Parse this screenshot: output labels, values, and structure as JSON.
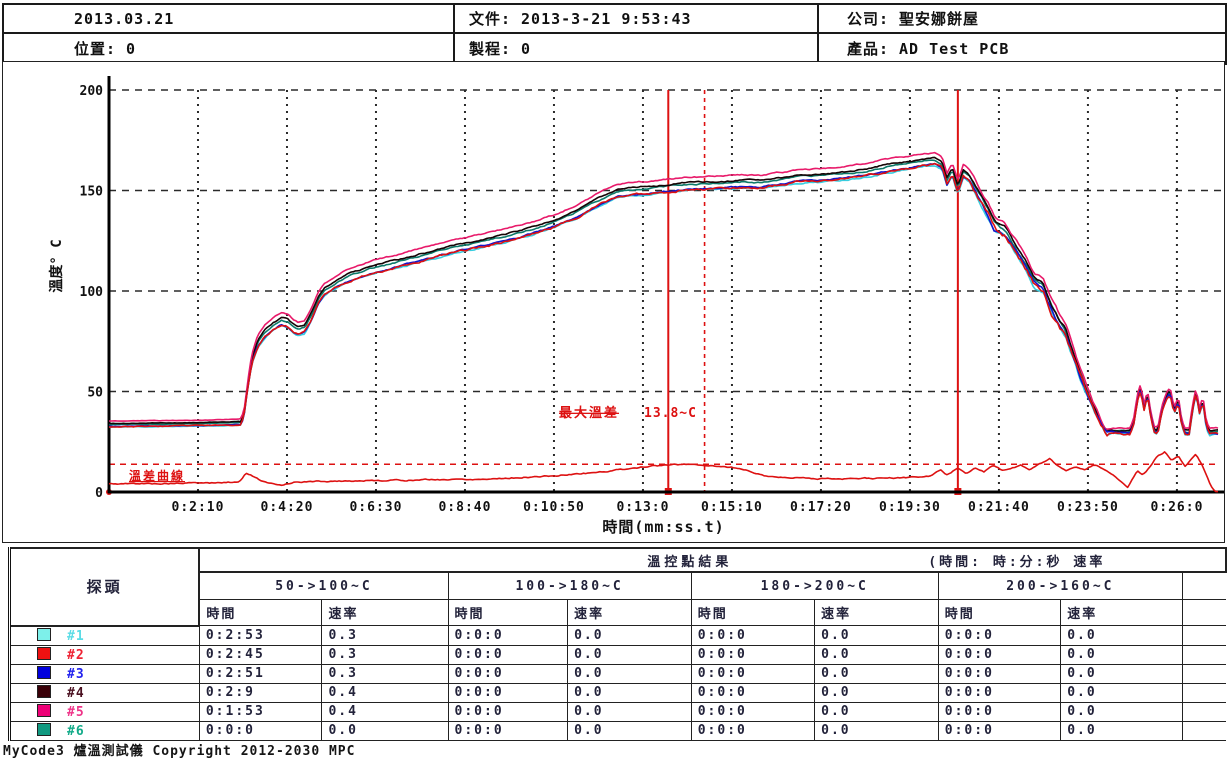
{
  "header": {
    "date": "2013.03.21",
    "file_label": "文件:",
    "file_value": "2013-3-21 9:53:43",
    "company_label": "公司:",
    "company_value": "聖安娜餅屋",
    "position_label": "位置:",
    "position_value": "0",
    "process_label": "製程:",
    "process_value": "0",
    "product_label": "產品:",
    "product_value": "AD Test PCB"
  },
  "chart_data": {
    "type": "line",
    "title": "",
    "xlabel": "時間(mm:ss.t)",
    "ylabel": "溫度° C",
    "ylim": [
      0,
      200
    ],
    "yticks": [
      0,
      50,
      100,
      150,
      200
    ],
    "xlim_seconds": [
      0,
      1620
    ],
    "xtick_seconds": [
      130,
      260,
      390,
      520,
      650,
      780,
      910,
      1040,
      1170,
      1300,
      1430,
      1560
    ],
    "xtick_labels": [
      "0:2:10",
      "0:4:20",
      "0:6:30",
      "0:8:40",
      "0:10:50",
      "0:13:0",
      "0:15:10",
      "0:17:20",
      "0:19:30",
      "0:21:40",
      "0:23:50",
      "0:26:0"
    ],
    "grid": true,
    "legend_position": "table-below",
    "annotations": {
      "max_diff_label": "最大溫差",
      "max_diff_value": "13.8~C",
      "max_diff_line_c": 13.8,
      "diff_curve_label": "溫差曲線"
    },
    "markers": {
      "solid_vlines_seconds": [
        817,
        1240
      ],
      "dashed_vline_seconds": 870,
      "marker_color": "#dd1111"
    },
    "base_profile": [
      [
        0,
        33.5
      ],
      [
        100,
        33.8
      ],
      [
        170,
        34.2
      ],
      [
        192,
        34.5
      ],
      [
        197,
        38
      ],
      [
        203,
        54
      ],
      [
        209,
        66
      ],
      [
        217,
        74
      ],
      [
        227,
        79
      ],
      [
        240,
        83
      ],
      [
        252,
        85.5
      ],
      [
        261,
        84.5
      ],
      [
        269,
        82
      ],
      [
        277,
        80.5
      ],
      [
        286,
        81.5
      ],
      [
        296,
        88
      ],
      [
        306,
        96
      ],
      [
        314,
        100
      ],
      [
        332,
        104
      ],
      [
        356,
        108
      ],
      [
        382,
        111
      ],
      [
        420,
        114
      ],
      [
        460,
        117.5
      ],
      [
        500,
        121
      ],
      [
        540,
        124
      ],
      [
        580,
        127
      ],
      [
        618,
        130.5
      ],
      [
        650,
        134
      ],
      [
        678,
        138
      ],
      [
        700,
        142
      ],
      [
        722,
        146
      ],
      [
        742,
        149
      ],
      [
        762,
        150
      ],
      [
        782,
        150.5
      ],
      [
        810,
        151.5
      ],
      [
        840,
        152.5
      ],
      [
        870,
        153
      ],
      [
        900,
        153.5
      ],
      [
        925,
        154
      ],
      [
        950,
        153.5
      ],
      [
        980,
        155
      ],
      [
        1010,
        156.5
      ],
      [
        1045,
        157
      ],
      [
        1075,
        158
      ],
      [
        1105,
        159.5
      ],
      [
        1135,
        161.5
      ],
      [
        1165,
        163
      ],
      [
        1190,
        164.5
      ],
      [
        1207,
        165
      ],
      [
        1217,
        163
      ],
      [
        1224,
        155
      ],
      [
        1232,
        160
      ],
      [
        1240,
        151
      ],
      [
        1248,
        159
      ],
      [
        1256,
        157
      ],
      [
        1270,
        148
      ],
      [
        1284,
        140
      ],
      [
        1294,
        133
      ],
      [
        1309,
        130
      ],
      [
        1324,
        122
      ],
      [
        1339,
        114
      ],
      [
        1351,
        106
      ],
      [
        1364,
        103
      ],
      [
        1377,
        92
      ],
      [
        1389,
        84
      ],
      [
        1397,
        80
      ],
      [
        1407,
        70
      ],
      [
        1419,
        58
      ],
      [
        1431,
        48
      ],
      [
        1441,
        40
      ],
      [
        1451,
        33
      ],
      [
        1457,
        30
      ],
      [
        1492,
        30
      ],
      [
        1497,
        35
      ],
      [
        1502,
        46
      ],
      [
        1507,
        52
      ],
      [
        1512,
        42
      ],
      [
        1517,
        49
      ],
      [
        1522,
        38
      ],
      [
        1527,
        31
      ],
      [
        1532,
        30
      ],
      [
        1538,
        41
      ],
      [
        1544,
        47
      ],
      [
        1550,
        50
      ],
      [
        1556,
        40
      ],
      [
        1562,
        46
      ],
      [
        1567,
        34
      ],
      [
        1572,
        30
      ],
      [
        1578,
        30
      ],
      [
        1583,
        42
      ],
      [
        1588,
        50
      ],
      [
        1593,
        40
      ],
      [
        1598,
        46
      ],
      [
        1603,
        33
      ],
      [
        1608,
        30
      ],
      [
        1620,
        30
      ]
    ],
    "series": [
      {
        "name": "#1",
        "color": "#38cddf",
        "offset": -2.6,
        "seed": 11,
        "amp": 0.55
      },
      {
        "name": "#2",
        "color": "#dd1111",
        "offset": -2.2,
        "seed": 23,
        "amp": 0.8
      },
      {
        "name": "#3",
        "color": "#1414cc",
        "offset": -2.0,
        "seed": 37,
        "amp": 0.55
      },
      {
        "name": "#4",
        "color": "#150505",
        "offset": 1.3,
        "seed": 49,
        "amp": 0.5
      },
      {
        "name": "#5",
        "color": "#e81a6a",
        "offset": 3.9,
        "seed": 61,
        "amp": 0.5
      },
      {
        "name": "#6",
        "color": "#0d7a6a",
        "offset": 0.3,
        "seed": 77,
        "amp": 0.5
      }
    ],
    "diff_series": {
      "name": "溫差曲線",
      "color": "#dd1111",
      "points": [
        [
          0,
          4
        ],
        [
          150,
          4.5
        ],
        [
          190,
          5
        ],
        [
          200,
          9.5
        ],
        [
          210,
          8
        ],
        [
          222,
          5.5
        ],
        [
          234,
          4
        ],
        [
          252,
          3.5
        ],
        [
          270,
          5
        ],
        [
          340,
          5.5
        ],
        [
          450,
          6
        ],
        [
          550,
          6.5
        ],
        [
          650,
          8
        ],
        [
          720,
          10
        ],
        [
          780,
          12.5
        ],
        [
          817,
          13.4
        ],
        [
          850,
          13.8
        ],
        [
          880,
          13.2
        ],
        [
          910,
          12.3
        ],
        [
          940,
          10
        ],
        [
          960,
          8
        ],
        [
          990,
          7.2
        ],
        [
          1030,
          6.8
        ],
        [
          1080,
          6.5
        ],
        [
          1130,
          6.8
        ],
        [
          1170,
          7.2
        ],
        [
          1200,
          8
        ],
        [
          1215,
          11
        ],
        [
          1225,
          8.5
        ],
        [
          1240,
          12
        ],
        [
          1252,
          9.5
        ],
        [
          1265,
          12.5
        ],
        [
          1278,
          10
        ],
        [
          1292,
          13
        ],
        [
          1305,
          10.5
        ],
        [
          1318,
          12
        ],
        [
          1332,
          13.5
        ],
        [
          1345,
          11
        ],
        [
          1360,
          14
        ],
        [
          1374,
          16.5
        ],
        [
          1385,
          13
        ],
        [
          1398,
          10.5
        ],
        [
          1412,
          12.5
        ],
        [
          1425,
          11
        ],
        [
          1438,
          13.5
        ],
        [
          1450,
          12
        ],
        [
          1465,
          9
        ],
        [
          1478,
          5
        ],
        [
          1488,
          2
        ],
        [
          1495,
          6
        ],
        [
          1502,
          10
        ],
        [
          1510,
          8
        ],
        [
          1520,
          12
        ],
        [
          1532,
          18
        ],
        [
          1542,
          20
        ],
        [
          1552,
          16
        ],
        [
          1562,
          18
        ],
        [
          1572,
          13
        ],
        [
          1580,
          16
        ],
        [
          1588,
          19
        ],
        [
          1596,
          14
        ],
        [
          1604,
          8
        ],
        [
          1610,
          3
        ],
        [
          1616,
          0.5
        ],
        [
          1620,
          0.5
        ]
      ]
    }
  },
  "table": {
    "probe_header": "探頭",
    "result_header": "溫控點結果",
    "time_note": "(時間:  時:分:秒  速率",
    "groups": [
      "50->100~C",
      "100->180~C",
      "180->200~C",
      "200->160~C"
    ],
    "sub_headers": [
      "時間",
      "速率"
    ],
    "rows": [
      {
        "label": "#1",
        "swatch": "#7df0ea",
        "text_color": "#5adce6",
        "values": [
          "0:2:53",
          "0.3",
          "0:0:0",
          "0.0",
          "0:0:0",
          "0.0",
          "0:0:0",
          "0.0"
        ]
      },
      {
        "label": "#2",
        "swatch": "#ee1111",
        "text_color": "#ee2233",
        "values": [
          "0:2:45",
          "0.3",
          "0:0:0",
          "0.0",
          "0:0:0",
          "0.0",
          "0:0:0",
          "0.0"
        ]
      },
      {
        "label": "#3",
        "swatch": "#0000dd",
        "text_color": "#2222ee",
        "values": [
          "0:2:51",
          "0.3",
          "0:0:0",
          "0.0",
          "0:0:0",
          "0.0",
          "0:0:0",
          "0.0"
        ]
      },
      {
        "label": "#4",
        "swatch": "#3a0008",
        "text_color": "#4a1020",
        "values": [
          "0:2:9",
          "0.4",
          "0:0:0",
          "0.0",
          "0:0:0",
          "0.0",
          "0:0:0",
          "0.0"
        ]
      },
      {
        "label": "#5",
        "swatch": "#ee0077",
        "text_color": "#ee3388",
        "values": [
          "0:1:53",
          "0.4",
          "0:0:0",
          "0.0",
          "0:0:0",
          "0.0",
          "0:0:0",
          "0.0"
        ]
      },
      {
        "label": "#6",
        "swatch": "#119980",
        "text_color": "#11aa88",
        "values": [
          "0:0:0",
          "0.0",
          "0:0:0",
          "0.0",
          "0:0:0",
          "0.0",
          "0:0:0",
          "0.0"
        ]
      }
    ]
  },
  "footer": {
    "text": "MyCode3 爐溫測試儀 Copyright 2012-2030 MPC"
  }
}
